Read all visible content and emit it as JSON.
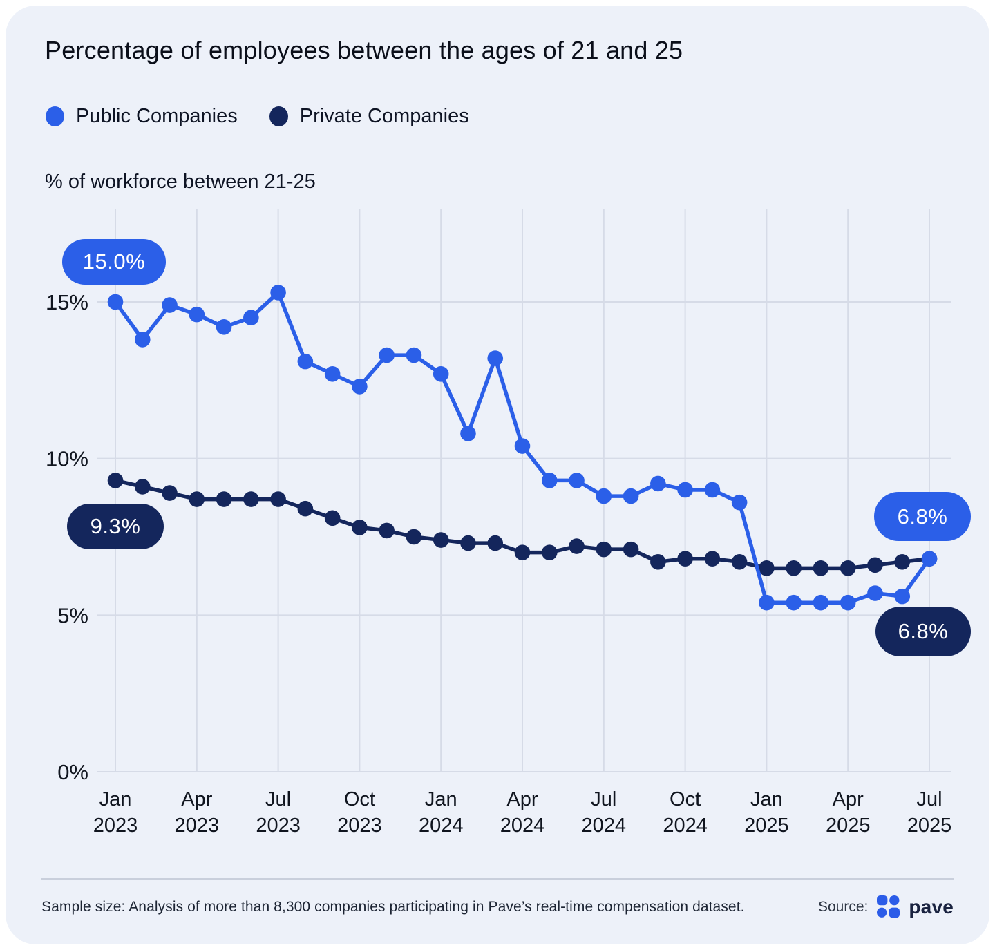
{
  "title": "Percentage of employees between the ages of 21 and 25",
  "y_axis_title": "% of workforce between 21-25",
  "legend": {
    "items": [
      {
        "label": "Public Companies",
        "color": "#2b5fe8"
      },
      {
        "label": "Private Companies",
        "color": "#14265c"
      }
    ]
  },
  "annotations": {
    "public_start": "15.0%",
    "private_start": "9.3%",
    "public_end": "6.8%",
    "private_end": "6.8%"
  },
  "footer": {
    "sample_note": "Sample size: Analysis of more than 8,300 companies participating in Pave’s real-time compensation dataset.",
    "source_label": "Source:",
    "source_name": "pave"
  },
  "colors": {
    "public": "#2b5fe8",
    "private": "#14265c",
    "card_background": "#edf1f9",
    "gridline": "#d6dbe7",
    "logo_blue": "#2b5ce8"
  },
  "chart_data": {
    "type": "line",
    "title": "Percentage of employees between the ages of 21 and 25",
    "ylabel": "% of workforce between 21-25",
    "x": [
      "Jan 2023",
      "Feb 2023",
      "Mar 2023",
      "Apr 2023",
      "May 2023",
      "Jun 2023",
      "Jul 2023",
      "Aug 2023",
      "Sep 2023",
      "Oct 2023",
      "Nov 2023",
      "Dec 2023",
      "Jan 2024",
      "Feb 2024",
      "Mar 2024",
      "Apr 2024",
      "May 2024",
      "Jun 2024",
      "Jul 2024",
      "Aug 2024",
      "Sep 2024",
      "Oct 2024",
      "Nov 2024",
      "Dec 2024",
      "Jan 2025",
      "Feb 2025",
      "Mar 2025",
      "Apr 2025",
      "May 2025",
      "Jun 2025",
      "Jul 2025"
    ],
    "series": [
      {
        "name": "Public Companies",
        "color": "#2b5fe8",
        "values": [
          15.0,
          13.8,
          14.9,
          14.6,
          14.2,
          14.5,
          15.3,
          13.1,
          12.7,
          12.3,
          13.3,
          13.3,
          12.7,
          10.8,
          13.2,
          10.4,
          9.3,
          9.3,
          8.8,
          8.8,
          9.2,
          9.0,
          9.0,
          8.6,
          5.4,
          5.4,
          5.4,
          5.4,
          5.7,
          5.6,
          6.8
        ]
      },
      {
        "name": "Private Companies",
        "color": "#14265c",
        "values": [
          9.3,
          9.1,
          8.9,
          8.7,
          8.7,
          8.7,
          8.7,
          8.4,
          8.1,
          7.8,
          7.7,
          7.5,
          7.4,
          7.3,
          7.3,
          7.0,
          7.0,
          7.2,
          7.1,
          7.1,
          6.7,
          6.8,
          6.8,
          6.7,
          6.5,
          6.5,
          6.5,
          6.5,
          6.6,
          6.7,
          6.8
        ]
      }
    ],
    "ylim": [
      0,
      16.5
    ],
    "yticks": [
      0,
      5,
      10,
      15
    ],
    "ytick_labels": [
      "0%",
      "5%",
      "10%",
      "15%"
    ],
    "xtick_indices": [
      0,
      3,
      6,
      9,
      12,
      15,
      18,
      21,
      24,
      27,
      30
    ],
    "grid": true,
    "legend_position": "top-left"
  }
}
